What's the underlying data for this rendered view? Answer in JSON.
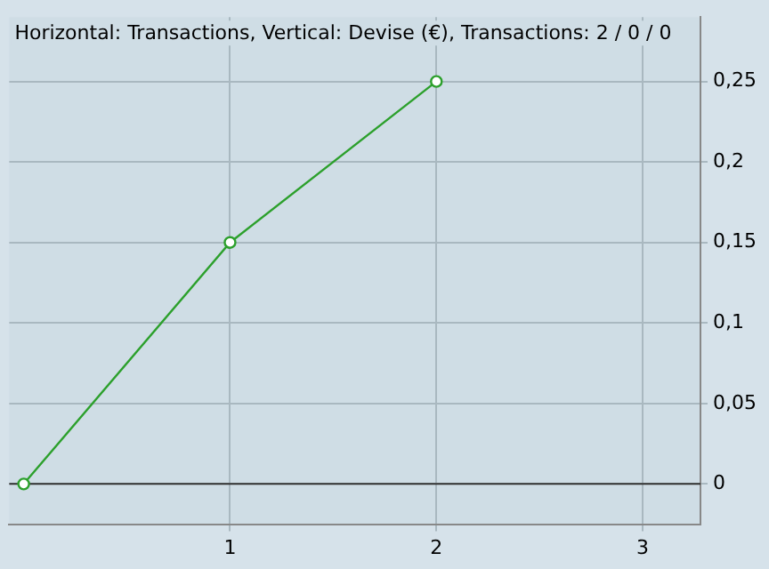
{
  "chart_data": {
    "type": "line",
    "title": "Horizontal: Transactions, Vertical: Devise (€), Transactions: 2 / 0 / 0",
    "x": [
      0,
      1,
      2
    ],
    "series": [
      {
        "color": "#2ca02c",
        "values": [
          0,
          0.15,
          0.25
        ]
      }
    ],
    "xlim": [
      -0.07,
      3.28
    ],
    "xticks": [
      1,
      2,
      3
    ],
    "ylim": [
      -0.025,
      0.29
    ],
    "yticks": [
      0,
      {
        "value": 0.05,
        "label": "0,05"
      },
      {
        "value": 0.1,
        "label": "0,1"
      },
      {
        "value": 0.15,
        "label": "0,15"
      },
      {
        "value": 0.2,
        "label": "0,2"
      },
      {
        "value": 0.25,
        "label": "0,25"
      }
    ],
    "ref_lines": [
      {
        "axis": "y",
        "value": 0,
        "color": "#333333"
      }
    ],
    "grid": true,
    "legend": false,
    "marker": "circle",
    "line_style": "solid"
  }
}
